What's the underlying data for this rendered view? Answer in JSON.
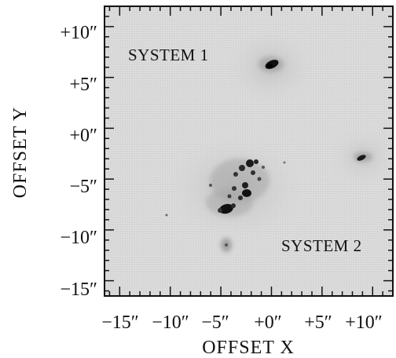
{
  "figure": {
    "image_description_icon": "galaxy-field-image",
    "x_axis": {
      "title": "OFFSET X",
      "ticks": [
        {
          "value": -15,
          "label": "−15″"
        },
        {
          "value": -10,
          "label": "−10″"
        },
        {
          "value": -5,
          "label": "−5″"
        },
        {
          "value": 0,
          "label": "+0″"
        },
        {
          "value": 5,
          "label": "+5″"
        },
        {
          "value": 10,
          "label": "+10″"
        }
      ],
      "range": [
        -16.5,
        12.0
      ]
    },
    "y_axis": {
      "title": "OFFSET Y",
      "ticks": [
        {
          "value": 10,
          "label": "+10″"
        },
        {
          "value": 5,
          "label": "+5″"
        },
        {
          "value": 0,
          "label": "+0″"
        },
        {
          "value": -5,
          "label": "−5″"
        },
        {
          "value": -10,
          "label": "−10″"
        },
        {
          "value": -15,
          "label": "−15″"
        }
      ],
      "range": [
        -16.5,
        12.0
      ]
    },
    "annotations": {
      "system1": "SYSTEM 1",
      "system2": "SYSTEM 2"
    },
    "colors": {
      "background": "#d9d9d9",
      "frame": "#111111"
    }
  }
}
